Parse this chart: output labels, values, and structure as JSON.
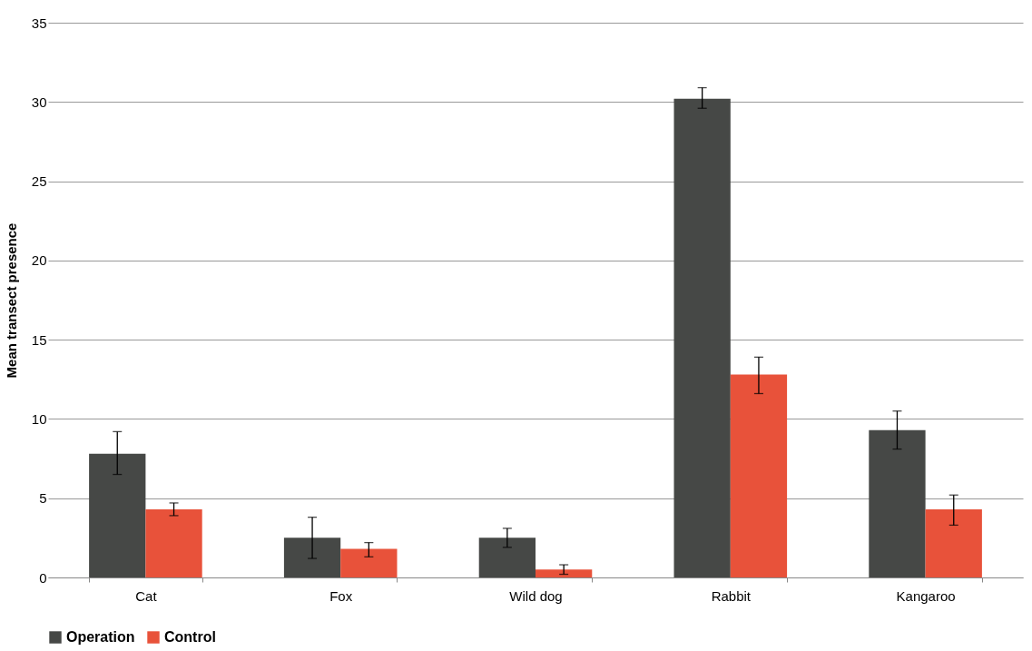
{
  "chart_data": {
    "type": "bar",
    "ylabel": "Mean transect presence",
    "categories": [
      "Cat",
      "Fox",
      "Wild dog",
      "Rabbit",
      "Kangaroo"
    ],
    "series": [
      {
        "name": "Operation",
        "color": "#464846",
        "values": [
          7.8,
          2.5,
          2.5,
          30.2,
          9.3
        ],
        "errors": [
          [
            6.5,
            9.2
          ],
          [
            1.2,
            3.8
          ],
          [
            1.9,
            3.1
          ],
          [
            29.6,
            30.9
          ],
          [
            8.1,
            10.5
          ]
        ]
      },
      {
        "name": "Control",
        "color": "#e8523a",
        "values": [
          4.3,
          1.8,
          0.5,
          12.8,
          4.3
        ],
        "errors": [
          [
            3.9,
            4.7
          ],
          [
            1.3,
            2.2
          ],
          [
            0.2,
            0.8
          ],
          [
            11.6,
            13.9
          ],
          [
            3.3,
            5.2
          ]
        ]
      }
    ],
    "ylim": [
      0,
      35
    ],
    "yticks": [
      0,
      5,
      10,
      15,
      20,
      25,
      30,
      35
    ],
    "grid": "y",
    "legend": "bottom left"
  }
}
